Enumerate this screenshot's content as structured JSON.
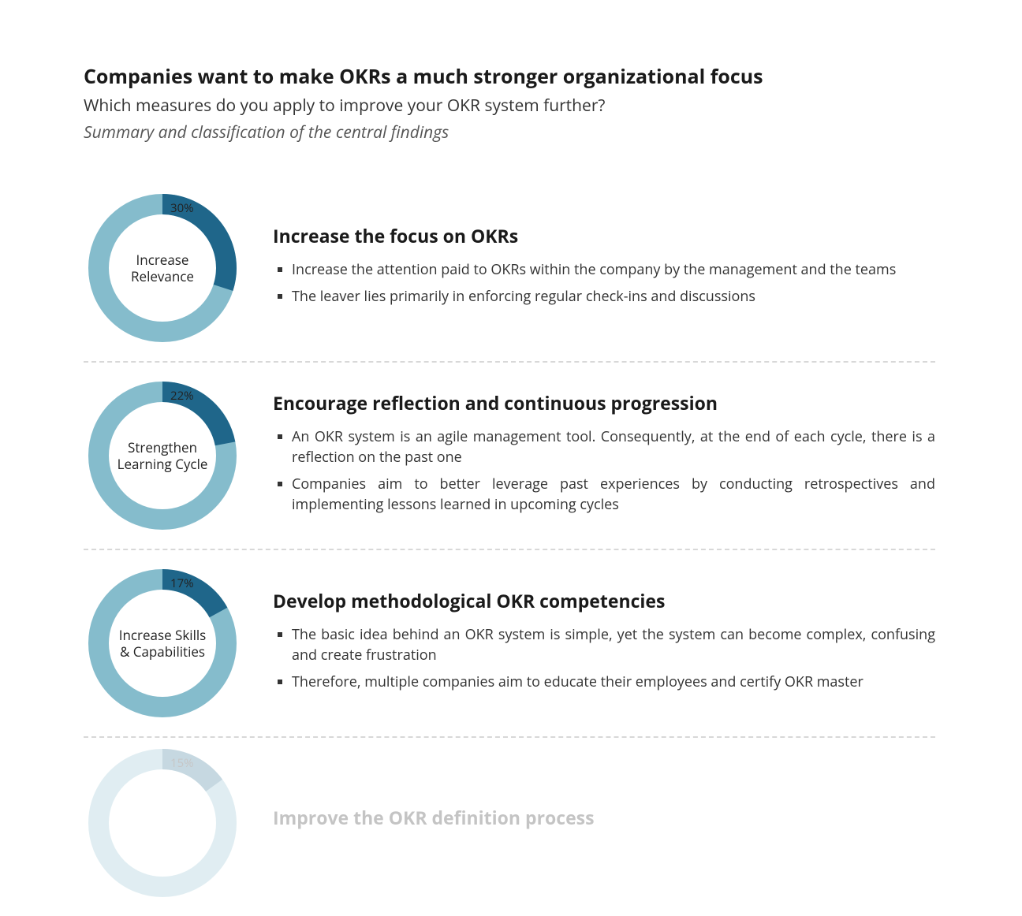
{
  "header": {
    "title": "Companies want to make OKRs a much stronger organizational focus",
    "subtitle": "Which measures do you apply to improve your OKR system further?",
    "summary": "Summary and classification of the central findings"
  },
  "style": {
    "donut": {
      "bg_color": "#85bccc",
      "fg_color": "#1f668a",
      "ring_width": 26,
      "outer_radius": 94,
      "start_angle_deg": 0,
      "direction": "clockwise",
      "pct_font_size": 15,
      "label_font_size": 17
    },
    "text": {
      "title_size": 25,
      "subtitle_size": 21,
      "section_heading_size": 23,
      "bullet_size": 18,
      "title_color": "#1a1a1a",
      "body_color": "#333333",
      "italic_color": "#555555"
    },
    "divider": {
      "color": "#d8d8d8",
      "style": "dashed",
      "width": 2
    },
    "background_color": "#ffffff",
    "bullet_marker": "square"
  },
  "rows": [
    {
      "percent": 30,
      "percent_label": "30%",
      "label_line1": "Increase",
      "label_line2": "Relevance",
      "heading": "Increase the focus on OKRs",
      "bullets": [
        "Increase the attention paid to OKRs within the company by the management and the teams",
        "The leaver lies primarily in enforcing regular check-ins and discussions"
      ],
      "faded": false
    },
    {
      "percent": 22,
      "percent_label": "22%",
      "label_line1": "Strengthen",
      "label_line2": "Learning Cycle",
      "heading": "Encourage reflection and continuous progression",
      "bullets": [
        "An OKR system is an agile management tool. Consequently, at the end of each cycle, there is a reflection on the past one",
        "Companies aim to better leverage past experiences by conducting retrospectives and implementing lessons learned in upcoming cycles"
      ],
      "faded": false
    },
    {
      "percent": 17,
      "percent_label": "17%",
      "label_line1": "Increase Skills",
      "label_line2": "& Capabilities",
      "heading": "Develop methodological OKR competencies",
      "bullets": [
        "The basic idea behind an OKR system is simple, yet the system can become complex, confusing and create frustration",
        "Therefore, multiple companies aim to educate their employees and certify OKR master"
      ],
      "faded": false
    },
    {
      "percent": 15,
      "percent_label": "15%",
      "label_line1": "",
      "label_line2": "",
      "heading": "Improve the OKR definition process",
      "bullets": [],
      "faded": true
    }
  ]
}
